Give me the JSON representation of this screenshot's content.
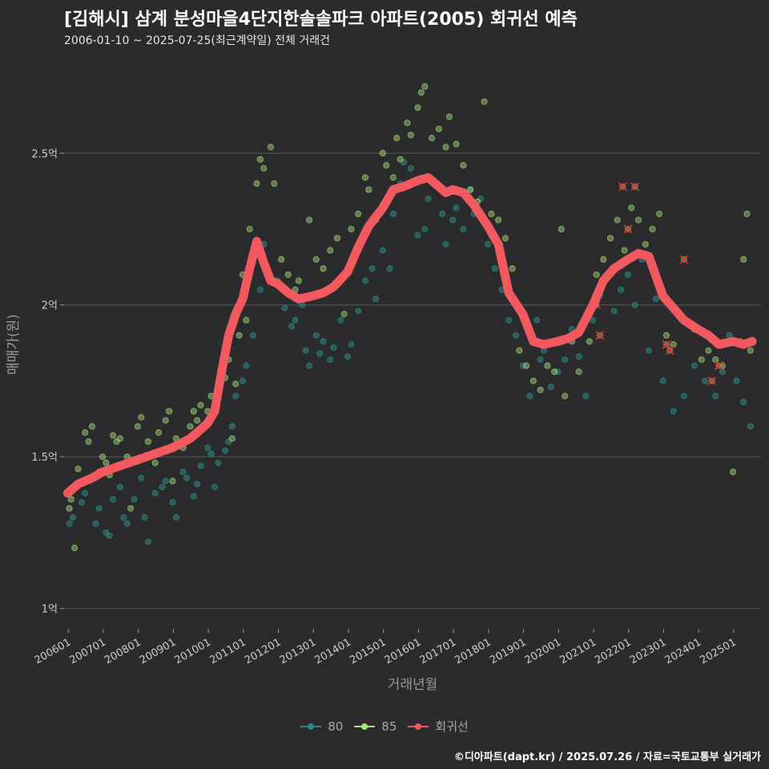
{
  "chart_data": {
    "type": "scatter",
    "title": "[김해시] 삼계 분성마을4단지한솔솔파크 아파트(2005) 회귀선 예측",
    "subtitle": "2006-01-10 ~ 2025-07-25(최근계약일) 전체 거래건",
    "xlabel": "거래년월",
    "ylabel": "매매가(원)",
    "x_tick_labels": [
      "200601",
      "200701",
      "200801",
      "200901",
      "201001",
      "201101",
      "201201",
      "201301",
      "201401",
      "201501",
      "201601",
      "201701",
      "201801",
      "201901",
      "202001",
      "202101",
      "202201",
      "202301",
      "202401",
      "202501"
    ],
    "y_ticks": [
      1.0,
      1.5,
      2.0,
      2.5
    ],
    "y_tick_labels": [
      "1억",
      "1.5억",
      "2억",
      "2.5억"
    ],
    "ylim": [
      0.92,
      2.82
    ],
    "xlim": [
      2005.9,
      2025.8
    ],
    "grid": "horizontal",
    "legend": "bottom",
    "colors": {
      "s80": "#2a8a85",
      "s85": "#a8e07a",
      "regression": "#f25a5f",
      "background": "#2b2b2d",
      "grid": "#5b5b5b"
    },
    "series": [
      {
        "name": "80",
        "kind": "scatter"
      },
      {
        "name": "85",
        "kind": "scatter"
      },
      {
        "name": "회귀선",
        "kind": "line",
        "x": [
          2006.0,
          2006.3,
          2006.7,
          2007.0,
          2007.5,
          2008.0,
          2008.5,
          2009.0,
          2009.5,
          2010.0,
          2010.2,
          2010.4,
          2010.6,
          2010.8,
          2011.0,
          2011.2,
          2011.4,
          2011.6,
          2011.8,
          2012.0,
          2012.3,
          2012.6,
          2013.0,
          2013.3,
          2013.6,
          2014.0,
          2014.3,
          2014.6,
          2015.0,
          2015.3,
          2015.6,
          2016.0,
          2016.3,
          2016.5,
          2016.8,
          2017.0,
          2017.3,
          2017.6,
          2018.0,
          2018.3,
          2018.6,
          2019.0,
          2019.3,
          2019.6,
          2020.0,
          2020.3,
          2020.6,
          2021.0,
          2021.3,
          2021.6,
          2022.0,
          2022.3,
          2022.6,
          2023.0,
          2023.3,
          2023.6,
          2024.0,
          2024.3,
          2024.6,
          2025.0,
          2025.3,
          2025.55
        ],
        "y": [
          1.38,
          1.41,
          1.43,
          1.45,
          1.47,
          1.49,
          1.51,
          1.53,
          1.56,
          1.61,
          1.65,
          1.78,
          1.9,
          1.97,
          2.02,
          2.12,
          2.21,
          2.14,
          2.08,
          2.07,
          2.04,
          2.02,
          2.03,
          2.04,
          2.06,
          2.11,
          2.19,
          2.26,
          2.32,
          2.38,
          2.39,
          2.41,
          2.42,
          2.4,
          2.37,
          2.38,
          2.37,
          2.33,
          2.26,
          2.2,
          2.04,
          1.97,
          1.88,
          1.87,
          1.88,
          1.89,
          1.91,
          2.0,
          2.08,
          2.12,
          2.15,
          2.17,
          2.16,
          2.03,
          1.99,
          1.95,
          1.92,
          1.9,
          1.87,
          1.88,
          1.87,
          1.88
        ]
      }
    ],
    "points_80": [
      [
        2006.05,
        1.28
      ],
      [
        2006.15,
        1.3
      ],
      [
        2006.4,
        1.35
      ],
      [
        2006.5,
        1.38
      ],
      [
        2006.6,
        1.42
      ],
      [
        2006.8,
        1.28
      ],
      [
        2006.9,
        1.33
      ],
      [
        2007.1,
        1.25
      ],
      [
        2007.2,
        1.24
      ],
      [
        2007.3,
        1.36
      ],
      [
        2007.5,
        1.4
      ],
      [
        2007.6,
        1.3
      ],
      [
        2007.7,
        1.28
      ],
      [
        2007.9,
        1.36
      ],
      [
        2008.1,
        1.43
      ],
      [
        2008.2,
        1.3
      ],
      [
        2008.3,
        1.22
      ],
      [
        2008.5,
        1.38
      ],
      [
        2008.7,
        1.4
      ],
      [
        2008.8,
        1.42
      ],
      [
        2009.0,
        1.35
      ],
      [
        2009.1,
        1.3
      ],
      [
        2009.3,
        1.45
      ],
      [
        2009.4,
        1.43
      ],
      [
        2009.6,
        1.37
      ],
      [
        2009.7,
        1.41
      ],
      [
        2009.8,
        1.47
      ],
      [
        2010.0,
        1.53
      ],
      [
        2010.1,
        1.51
      ],
      [
        2010.2,
        1.4
      ],
      [
        2010.3,
        1.48
      ],
      [
        2010.5,
        1.52
      ],
      [
        2010.6,
        1.55
      ],
      [
        2010.7,
        1.6
      ],
      [
        2010.8,
        1.7
      ],
      [
        2011.0,
        1.75
      ],
      [
        2011.1,
        1.8
      ],
      [
        2011.3,
        1.9
      ],
      [
        2011.5,
        2.05
      ],
      [
        2011.6,
        2.2
      ],
      [
        2011.8,
        2.08
      ],
      [
        2012.0,
        2.08
      ],
      [
        2012.2,
        1.99
      ],
      [
        2012.4,
        1.93
      ],
      [
        2012.5,
        1.95
      ],
      [
        2012.7,
        2.0
      ],
      [
        2012.8,
        1.85
      ],
      [
        2012.9,
        1.8
      ],
      [
        2013.1,
        1.9
      ],
      [
        2013.2,
        1.84
      ],
      [
        2013.3,
        1.88
      ],
      [
        2013.5,
        1.82
      ],
      [
        2013.6,
        1.86
      ],
      [
        2013.8,
        1.95
      ],
      [
        2014.0,
        1.83
      ],
      [
        2014.1,
        1.87
      ],
      [
        2014.3,
        1.98
      ],
      [
        2014.5,
        2.08
      ],
      [
        2014.7,
        2.12
      ],
      [
        2014.8,
        2.02
      ],
      [
        2015.0,
        2.18
      ],
      [
        2015.2,
        2.12
      ],
      [
        2015.3,
        2.3
      ],
      [
        2015.5,
        2.4
      ],
      [
        2015.6,
        2.47
      ],
      [
        2015.8,
        2.45
      ],
      [
        2016.0,
        2.23
      ],
      [
        2016.2,
        2.25
      ],
      [
        2016.3,
        2.35
      ],
      [
        2016.5,
        2.4
      ],
      [
        2016.7,
        2.3
      ],
      [
        2016.8,
        2.2
      ],
      [
        2017.0,
        2.28
      ],
      [
        2017.1,
        2.32
      ],
      [
        2017.3,
        2.25
      ],
      [
        2017.5,
        2.38
      ],
      [
        2017.6,
        2.3
      ],
      [
        2017.8,
        2.35
      ],
      [
        2018.0,
        2.2
      ],
      [
        2018.2,
        2.12
      ],
      [
        2018.4,
        2.05
      ],
      [
        2018.6,
        1.95
      ],
      [
        2018.8,
        1.9
      ],
      [
        2019.0,
        1.8
      ],
      [
        2019.2,
        1.7
      ],
      [
        2019.4,
        1.95
      ],
      [
        2019.5,
        1.82
      ],
      [
        2019.6,
        1.85
      ],
      [
        2019.8,
        1.73
      ],
      [
        2020.0,
        1.78
      ],
      [
        2020.2,
        1.82
      ],
      [
        2020.4,
        1.92
      ],
      [
        2020.6,
        1.83
      ],
      [
        2020.8,
        1.7
      ],
      [
        2021.0,
        1.95
      ],
      [
        2021.2,
        2.03
      ],
      [
        2021.4,
        2.1
      ],
      [
        2021.6,
        1.98
      ],
      [
        2021.8,
        2.05
      ],
      [
        2022.0,
        2.1
      ],
      [
        2022.2,
        2.0
      ],
      [
        2022.4,
        2.15
      ],
      [
        2022.6,
        1.85
      ],
      [
        2022.8,
        2.02
      ],
      [
        2023.0,
        1.75
      ],
      [
        2023.3,
        1.65
      ],
      [
        2023.6,
        1.7
      ],
      [
        2023.9,
        1.8
      ],
      [
        2024.2,
        1.75
      ],
      [
        2024.5,
        1.7
      ],
      [
        2024.7,
        1.78
      ],
      [
        2024.9,
        1.9
      ],
      [
        2025.1,
        1.75
      ],
      [
        2025.3,
        1.68
      ],
      [
        2025.5,
        1.6
      ]
    ],
    "points_85": [
      [
        2006.05,
        1.33
      ],
      [
        2006.1,
        1.36
      ],
      [
        2006.2,
        1.2
      ],
      [
        2006.3,
        1.46
      ],
      [
        2006.5,
        1.58
      ],
      [
        2006.6,
        1.55
      ],
      [
        2006.7,
        1.6
      ],
      [
        2006.9,
        1.45
      ],
      [
        2007.0,
        1.5
      ],
      [
        2007.1,
        1.48
      ],
      [
        2007.2,
        1.44
      ],
      [
        2007.3,
        1.57
      ],
      [
        2007.4,
        1.55
      ],
      [
        2007.5,
        1.56
      ],
      [
        2007.7,
        1.5
      ],
      [
        2007.8,
        1.33
      ],
      [
        2008.0,
        1.6
      ],
      [
        2008.1,
        1.63
      ],
      [
        2008.3,
        1.55
      ],
      [
        2008.5,
        1.48
      ],
      [
        2008.6,
        1.58
      ],
      [
        2008.8,
        1.62
      ],
      [
        2008.9,
        1.65
      ],
      [
        2009.0,
        1.42
      ],
      [
        2009.1,
        1.56
      ],
      [
        2009.3,
        1.53
      ],
      [
        2009.5,
        1.6
      ],
      [
        2009.6,
        1.65
      ],
      [
        2009.7,
        1.62
      ],
      [
        2009.8,
        1.67
      ],
      [
        2010.0,
        1.65
      ],
      [
        2010.1,
        1.7
      ],
      [
        2010.3,
        1.72
      ],
      [
        2010.5,
        1.76
      ],
      [
        2010.6,
        1.82
      ],
      [
        2010.7,
        1.56
      ],
      [
        2010.8,
        1.74
      ],
      [
        2010.9,
        1.9
      ],
      [
        2011.0,
        2.1
      ],
      [
        2011.1,
        1.95
      ],
      [
        2011.2,
        2.25
      ],
      [
        2011.4,
        2.4
      ],
      [
        2011.5,
        2.48
      ],
      [
        2011.6,
        2.45
      ],
      [
        2011.8,
        2.52
      ],
      [
        2011.9,
        2.4
      ],
      [
        2012.1,
        2.15
      ],
      [
        2012.3,
        2.1
      ],
      [
        2012.5,
        2.05
      ],
      [
        2012.6,
        2.08
      ],
      [
        2012.9,
        2.28
      ],
      [
        2013.1,
        2.15
      ],
      [
        2013.3,
        2.12
      ],
      [
        2013.5,
        2.18
      ],
      [
        2013.7,
        2.22
      ],
      [
        2013.9,
        1.97
      ],
      [
        2014.1,
        2.25
      ],
      [
        2014.3,
        2.3
      ],
      [
        2014.5,
        2.42
      ],
      [
        2014.6,
        2.38
      ],
      [
        2014.8,
        2.28
      ],
      [
        2015.0,
        2.5
      ],
      [
        2015.1,
        2.46
      ],
      [
        2015.3,
        2.42
      ],
      [
        2015.4,
        2.55
      ],
      [
        2015.5,
        2.48
      ],
      [
        2015.7,
        2.6
      ],
      [
        2015.8,
        2.56
      ],
      [
        2016.0,
        2.65
      ],
      [
        2016.1,
        2.7
      ],
      [
        2016.2,
        2.72
      ],
      [
        2016.4,
        2.55
      ],
      [
        2016.6,
        2.58
      ],
      [
        2016.8,
        2.52
      ],
      [
        2016.9,
        2.62
      ],
      [
        2017.1,
        2.53
      ],
      [
        2017.3,
        2.46
      ],
      [
        2017.5,
        2.38
      ],
      [
        2017.7,
        2.34
      ],
      [
        2017.9,
        2.67
      ],
      [
        2018.1,
        2.3
      ],
      [
        2018.3,
        2.28
      ],
      [
        2018.5,
        2.22
      ],
      [
        2018.7,
        2.12
      ],
      [
        2018.9,
        1.85
      ],
      [
        2019.1,
        1.8
      ],
      [
        2019.3,
        1.75
      ],
      [
        2019.5,
        1.72
      ],
      [
        2019.7,
        1.8
      ],
      [
        2019.9,
        1.78
      ],
      [
        2020.1,
        2.25
      ],
      [
        2020.2,
        1.7
      ],
      [
        2020.4,
        1.88
      ],
      [
        2020.6,
        1.78
      ],
      [
        2020.9,
        1.88
      ],
      [
        2021.1,
        2.1
      ],
      [
        2021.3,
        2.15
      ],
      [
        2021.5,
        2.22
      ],
      [
        2021.7,
        2.28
      ],
      [
        2021.9,
        2.18
      ],
      [
        2022.1,
        2.32
      ],
      [
        2022.3,
        2.28
      ],
      [
        2022.5,
        2.2
      ],
      [
        2022.7,
        2.25
      ],
      [
        2022.9,
        2.3
      ],
      [
        2023.1,
        1.9
      ],
      [
        2023.3,
        1.87
      ],
      [
        2023.6,
        1.95
      ],
      [
        2023.9,
        1.92
      ],
      [
        2024.1,
        1.82
      ],
      [
        2024.3,
        1.85
      ],
      [
        2024.5,
        1.82
      ],
      [
        2024.7,
        1.8
      ],
      [
        2025.0,
        1.45
      ],
      [
        2025.2,
        1.88
      ],
      [
        2025.3,
        2.15
      ],
      [
        2025.4,
        2.3
      ],
      [
        2025.5,
        1.85
      ]
    ],
    "marked_x": [
      [
        2021.1,
        2.0
      ],
      [
        2021.2,
        1.9
      ],
      [
        2021.85,
        2.39
      ],
      [
        2022.0,
        2.25
      ],
      [
        2022.2,
        2.39
      ],
      [
        2023.1,
        1.87
      ],
      [
        2023.2,
        1.85
      ],
      [
        2023.6,
        2.15
      ],
      [
        2024.4,
        1.75
      ],
      [
        2024.6,
        1.8
      ]
    ]
  },
  "legend": {
    "items": [
      {
        "label": "80",
        "color": "#2a8a85"
      },
      {
        "label": "85",
        "color": "#a8e07a"
      },
      {
        "label": "회귀선",
        "color": "#f25a5f"
      }
    ]
  },
  "footer": "©디아파트(dapt.kr) / 2025.07.26 / 자료=국토교통부 실거래가"
}
